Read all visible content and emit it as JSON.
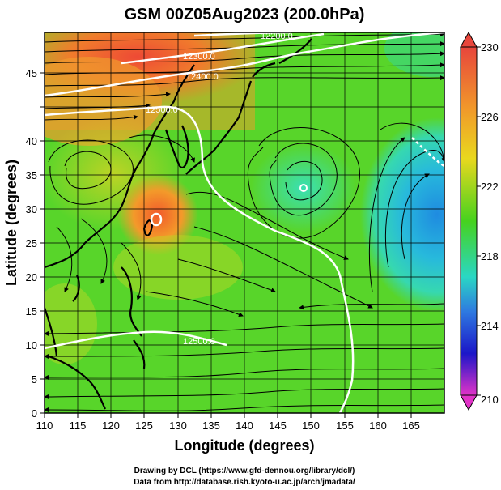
{
  "title": "GSM 00Z05Aug2023 (200.0hPa)",
  "xlabel": "Longitude (degrees)",
  "ylabel": "Latitude  (degrees)",
  "x_ticks": [
    "110",
    "115",
    "120",
    "125",
    "130",
    "135",
    "140",
    "145",
    "150",
    "155",
    "160",
    "165"
  ],
  "y_ticks": [
    "0",
    "5",
    "10",
    "15",
    "20",
    "25",
    "30",
    "35",
    "40",
    "45"
  ],
  "colorbar_ticks": [
    "230",
    "226",
    "222",
    "218",
    "214",
    "210"
  ],
  "contour_labels": [
    "12200.0",
    "12300.0",
    "12400.0",
    "12500.0",
    "12500.0"
  ],
  "credit_line1": "Drawing by DCL (https://www.gfd-dennou.org/library/dcl/)",
  "credit_line2": "Data from http://database.rish.kyoto-u.ac.jp/arch/jmadata/",
  "colors": {
    "warm_max": "#e8463c",
    "orange": "#f19a2a",
    "yellow": "#e9d81e",
    "green": "#46d21e",
    "cyan": "#2ad7c4",
    "blue": "#2e79e0",
    "deep_blue": "#1b16c8",
    "magenta": "#e233c8",
    "coast": "#000000",
    "contour": "#ffffff"
  },
  "chart_data": {
    "type": "heatmap",
    "variable": "200hPa temperature (K) with streamlines and geopotential height contours",
    "xlim": [
      110,
      170
    ],
    "ylim": [
      0,
      50
    ],
    "colorbar_range": [
      210,
      230
    ],
    "contour_levels": [
      12200,
      12300,
      12400,
      12500
    ]
  }
}
